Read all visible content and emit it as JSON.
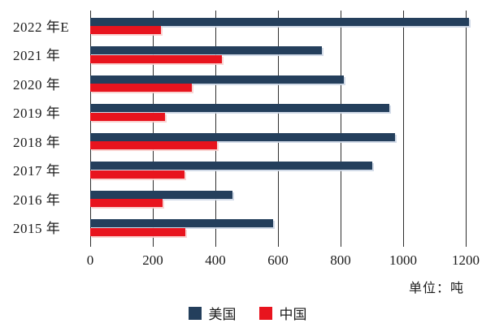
{
  "chart_data": {
    "type": "bar",
    "orientation": "horizontal",
    "title": "",
    "unit_label": "单位：吨",
    "categories": [
      "2022 年E",
      "2021 年",
      "2020 年",
      "2019 年",
      "2018 年",
      "2017 年",
      "2016 年",
      "2015 年"
    ],
    "series": [
      {
        "id": "usa",
        "name": "美国",
        "color": "#243F5C",
        "values": [
          1210,
          740,
          810,
          955,
          975,
          900,
          455,
          585
        ]
      },
      {
        "id": "china",
        "name": "中国",
        "color": "#E8141E",
        "values": [
          225,
          420,
          325,
          240,
          405,
          300,
          230,
          305
        ]
      }
    ],
    "xlim": [
      0,
      1200
    ],
    "x_ticks": [
      0,
      200,
      400,
      600,
      800,
      1000,
      1200
    ],
    "grid": "vertical-only",
    "legend_position": "bottom"
  }
}
